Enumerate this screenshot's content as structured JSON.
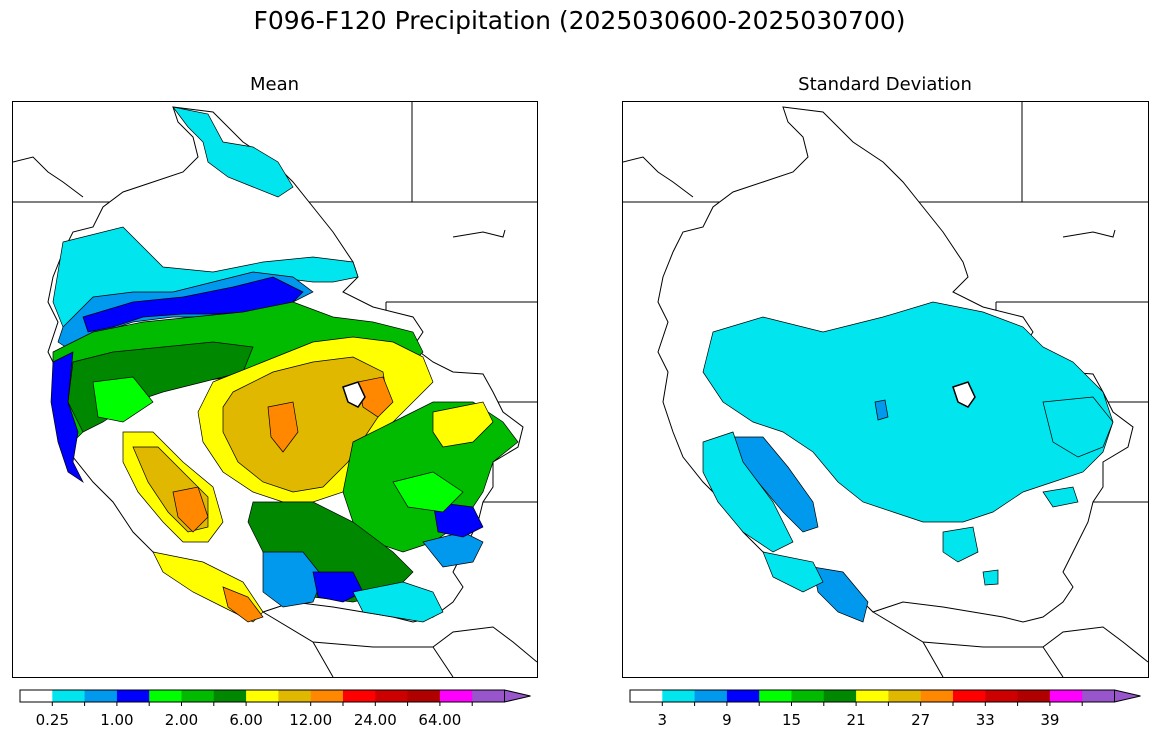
{
  "title": "F096-F120 Precipitation (2025030600-2025030700)",
  "panels": [
    {
      "id": "mean",
      "title": "Mean",
      "colors": [
        "#ffffff",
        "#00e5ee",
        "#0099ee",
        "#0000ff",
        "#00ff00",
        "#00bb00",
        "#008800",
        "#ffff00",
        "#e0b800",
        "#ff8800",
        "#ff0000",
        "#cc0000",
        "#b00000",
        "#ff00ff",
        "#9955cc"
      ],
      "tick_labels": [
        "0.25",
        "1.00",
        "2.00",
        "6.00",
        "12.00",
        "24.00",
        "64.00"
      ]
    },
    {
      "id": "stddev",
      "title": "Standard Deviation",
      "colors": [
        "#ffffff",
        "#00e5ee",
        "#0099ee",
        "#0000ff",
        "#00ff00",
        "#00bb00",
        "#008800",
        "#ffff00",
        "#e0b800",
        "#ff8800",
        "#ff0000",
        "#cc0000",
        "#b00000",
        "#ff00ff",
        "#9955cc"
      ],
      "tick_labels": [
        "3",
        "9",
        "15",
        "21",
        "27",
        "33",
        "39"
      ]
    }
  ]
}
